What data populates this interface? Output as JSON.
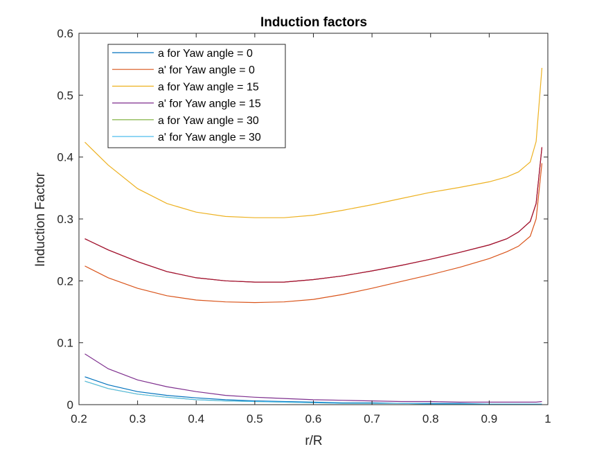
{
  "chart_data": {
    "type": "line",
    "title": "Induction factors",
    "xlabel": "r/R",
    "ylabel": "Induction Factor",
    "xlim": [
      0.2,
      1.0
    ],
    "ylim": [
      0,
      0.6
    ],
    "xticks": [
      "0.2",
      "0.3",
      "0.4",
      "0.5",
      "0.6",
      "0.7",
      "0.8",
      "0.9",
      "1"
    ],
    "yticks": [
      "0",
      "0.1",
      "0.2",
      "0.3",
      "0.4",
      "0.5",
      "0.6"
    ],
    "grid": false,
    "legend_position": "top-left",
    "x": [
      0.21,
      0.25,
      0.3,
      0.35,
      0.4,
      0.45,
      0.5,
      0.55,
      0.6,
      0.65,
      0.7,
      0.75,
      0.8,
      0.85,
      0.9,
      0.93,
      0.95,
      0.97,
      0.98,
      0.99
    ],
    "series": [
      {
        "name": "a for Yaw angle = 0",
        "color": "#0072BD",
        "values": [
          0.045,
          0.032,
          0.021,
          0.015,
          0.011,
          0.008,
          0.006,
          0.005,
          0.004,
          0.003,
          0.003,
          0.002,
          0.002,
          0.002,
          0.001,
          0.001,
          0.001,
          0.001,
          0.001,
          0.001
        ]
      },
      {
        "name": "a' for Yaw angle = 0",
        "color": "#D95319",
        "values": [
          0.224,
          0.205,
          0.188,
          0.176,
          0.169,
          0.166,
          0.165,
          0.166,
          0.17,
          0.178,
          0.188,
          0.199,
          0.21,
          0.222,
          0.236,
          0.247,
          0.256,
          0.272,
          0.3,
          0.39
        ]
      },
      {
        "name": "a for Yaw angle = 15",
        "color": "#EDB120",
        "values": [
          0.424,
          0.387,
          0.349,
          0.325,
          0.311,
          0.304,
          0.302,
          0.302,
          0.306,
          0.314,
          0.323,
          0.333,
          0.343,
          0.351,
          0.36,
          0.368,
          0.376,
          0.392,
          0.425,
          0.544
        ]
      },
      {
        "name": "a' for Yaw angle = 15",
        "color": "#7E2F8E",
        "values": [
          0.082,
          0.058,
          0.04,
          0.029,
          0.021,
          0.015,
          0.012,
          0.01,
          0.008,
          0.007,
          0.006,
          0.005,
          0.005,
          0.004,
          0.004,
          0.004,
          0.004,
          0.004,
          0.004,
          0.005
        ]
      },
      {
        "name": "a for Yaw angle = 30",
        "color": "#77AC30",
        "values": [
          0.268,
          0.25,
          0.231,
          0.215,
          0.205,
          0.2,
          0.198,
          0.198,
          0.202,
          0.208,
          0.216,
          0.225,
          0.235,
          0.246,
          0.258,
          0.268,
          0.279,
          0.296,
          0.325,
          0.416
        ]
      },
      {
        "name": "a' for Yaw angle = 30",
        "color": "#4DBEEE",
        "values": [
          0.038,
          0.026,
          0.017,
          0.012,
          0.008,
          0.006,
          0.005,
          0.004,
          0.003,
          0.002,
          0.002,
          0.002,
          0.001,
          0.001,
          0.001,
          0.001,
          0.001,
          0.001,
          0.001,
          0.001
        ]
      }
    ],
    "extra_lines": [
      {
        "color": "#A2142F",
        "values": [
          0.268,
          0.25,
          0.231,
          0.215,
          0.205,
          0.2,
          0.198,
          0.198,
          0.202,
          0.208,
          0.216,
          0.225,
          0.235,
          0.246,
          0.258,
          0.268,
          0.279,
          0.296,
          0.325,
          0.416
        ]
      },
      {
        "color": "#EDB120",
        "values": [
          0.038,
          0.026,
          0.017,
          0.012,
          0.008,
          0.006,
          0.005,
          0.004,
          0.003,
          0.002,
          0.002,
          0.002,
          0.001,
          0.001,
          0.001,
          0.001,
          0.001,
          0.001,
          0.001,
          0.001
        ]
      }
    ]
  }
}
